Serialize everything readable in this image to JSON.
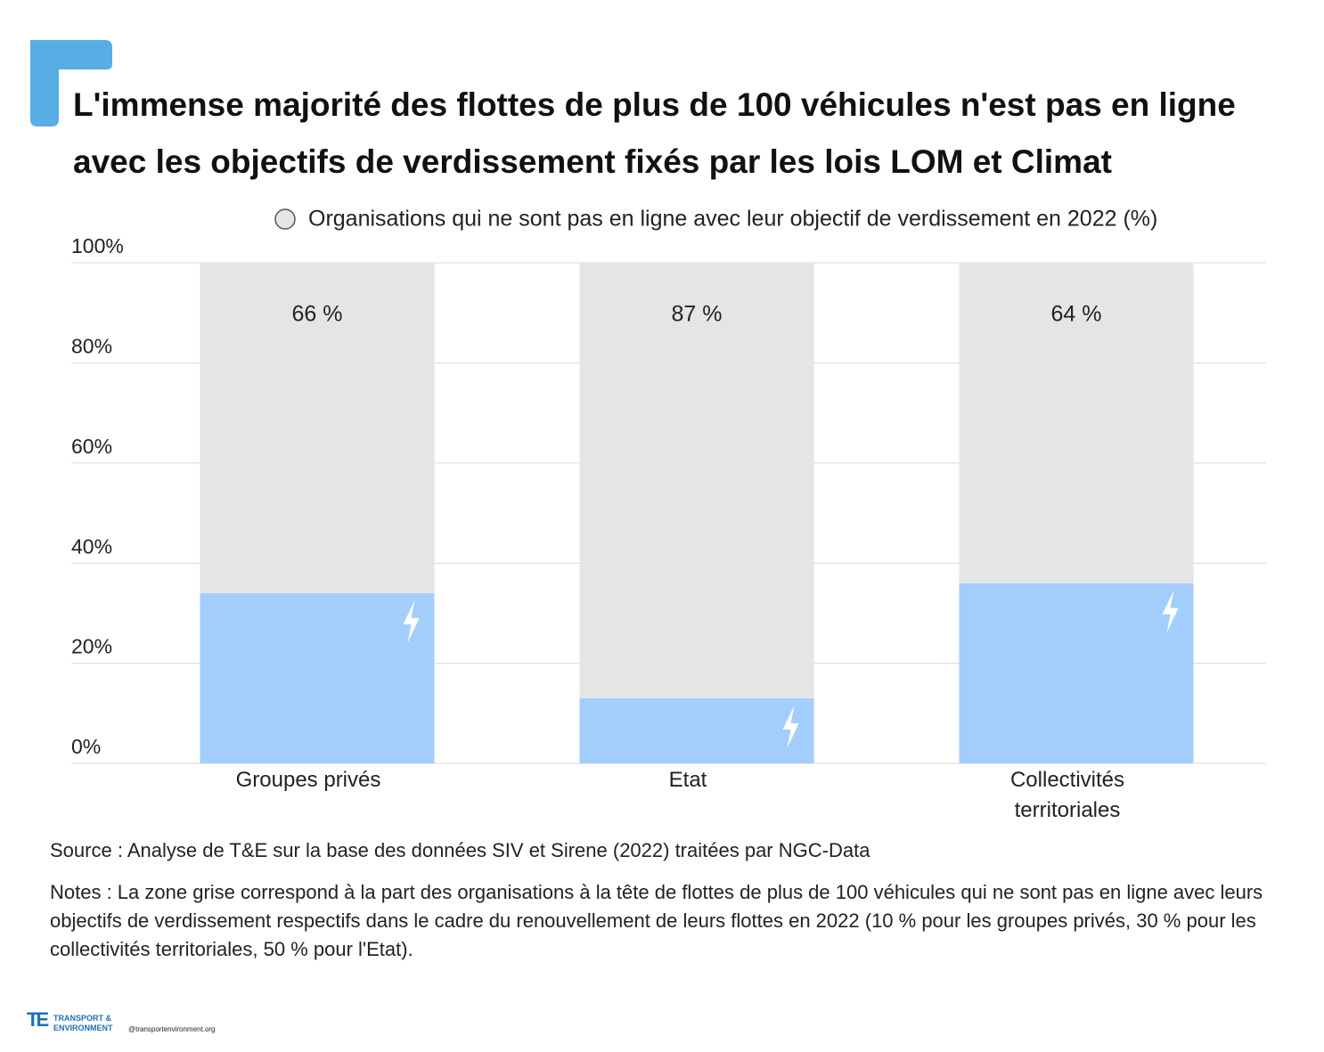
{
  "chart_data": {
    "type": "stacked_bar",
    "title": "L'immense majorité des  flottes de plus de 100 véhicules n'est pas en ligne avec les objectifs de verdissement fixés par les lois LOM et Climat",
    "categories": [
      "Groupes privés",
      "Etat",
      "Collectivités territoriales"
    ],
    "series": [
      {
        "color": "#a3cefb",
        "values": [
          34,
          13,
          36
        ]
      },
      {
        "name": "Organisations qui ne sont pas en ligne avec leur objectif de verdissement en 2022 (%)",
        "color": "#e5e5e5",
        "values": [
          66,
          87,
          64
        ],
        "value_labels": [
          "66 %",
          "87 %",
          "64 %"
        ]
      }
    ],
    "ylim": [
      0,
      100
    ],
    "yticks": [
      {
        "value": 0,
        "label": "0%"
      },
      {
        "value": 20,
        "label": "20%"
      },
      {
        "value": 40,
        "label": "40%"
      },
      {
        "value": 60,
        "label": "60%"
      },
      {
        "value": 80,
        "label": "80%"
      },
      {
        "value": 100,
        "label": "100%"
      }
    ],
    "grid": true,
    "source": "Source : Analyse de T&E sur la base des données SIV et Sirene (2022) traitées par NGC-Data",
    "notes": "Notes : La zone grise correspond à la part des organisations à la tête de flottes de plus de 100 véhicules qui ne sont pas en ligne avec leurs objectifs de verdissement respectifs dans le cadre du renouvellement de leurs flottes en 2022 (10 % pour les groupes privés, 30 % pour les collectivités territoriales, 50 % pour l'Etat).",
    "logo": {
      "line1": "TRANSPORT &",
      "line2": "ENVIRONMENT",
      "handle": "@transportenvironment.org"
    }
  }
}
